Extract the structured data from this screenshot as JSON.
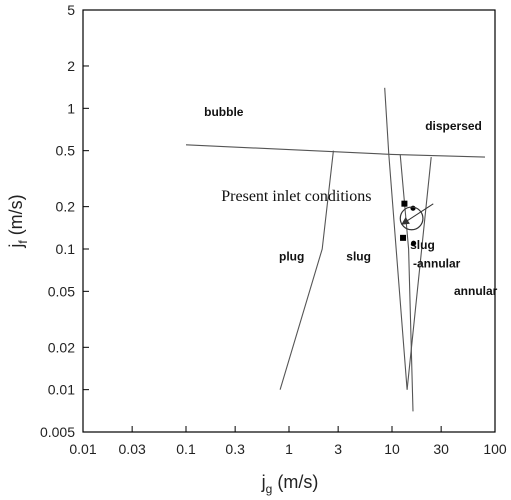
{
  "chart_data": {
    "type": "scatter",
    "x_scale": "log",
    "y_scale": "log",
    "xlim": [
      0.01,
      100
    ],
    "ylim": [
      0.005,
      5
    ],
    "xlabel": {
      "main": "j",
      "sub": "g",
      "units": " (m/s)"
    },
    "ylabel": {
      "main": "j",
      "sub": "f",
      "units": " (m/s)"
    },
    "x_ticks": [
      {
        "value": 0.01,
        "label": "0.01"
      },
      {
        "value": 0.03,
        "label": "0.03"
      },
      {
        "value": 0.1,
        "label": "0.1"
      },
      {
        "value": 0.3,
        "label": "0.3"
      },
      {
        "value": 1,
        "label": "1"
      },
      {
        "value": 3,
        "label": "3"
      },
      {
        "value": 10,
        "label": "10"
      },
      {
        "value": 30,
        "label": "30"
      },
      {
        "value": 100,
        "label": "100"
      }
    ],
    "y_ticks": [
      {
        "value": 5,
        "label": "5"
      },
      {
        "value": 2,
        "label": "2"
      },
      {
        "value": 1,
        "label": "1"
      },
      {
        "value": 0.5,
        "label": "0.5"
      },
      {
        "value": 0.2,
        "label": "0.2"
      },
      {
        "value": 0.1,
        "label": "0.1"
      },
      {
        "value": 0.05,
        "label": "0.05"
      },
      {
        "value": 0.02,
        "label": "0.02"
      },
      {
        "value": 0.01,
        "label": "0.01"
      },
      {
        "value": 0.005,
        "label": "0.005"
      }
    ],
    "regions": [
      {
        "label": "bubble",
        "x": 0.15,
        "y": 0.88
      },
      {
        "label": "dispersed",
        "x": 21,
        "y": 0.7
      },
      {
        "label": "plug",
        "x": 0.8,
        "y": 0.083
      },
      {
        "label": "slug",
        "x": 3.6,
        "y": 0.083
      },
      {
        "label": "slug",
        "x": 15,
        "y": 0.1
      },
      {
        "label": "-annular",
        "x": 16,
        "y": 0.074
      },
      {
        "label": "annular",
        "x": 40,
        "y": 0.047
      }
    ],
    "boundaries": [
      {
        "points": [
          [
            0.1,
            0.55
          ],
          [
            10,
            0.47
          ],
          [
            80,
            0.45
          ]
        ]
      },
      {
        "points": [
          [
            0.82,
            0.01
          ],
          [
            2.1,
            0.1
          ],
          [
            2.7,
            0.5
          ]
        ]
      },
      {
        "points": [
          [
            8.5,
            1.4
          ],
          [
            9.3,
            0.47
          ],
          [
            14,
            0.01
          ]
        ]
      },
      {
        "points": [
          [
            12,
            0.47
          ],
          [
            14.5,
            0.1
          ],
          [
            16,
            0.007
          ]
        ]
      },
      {
        "points": [
          [
            14,
            0.01
          ],
          [
            24,
            0.45
          ]
        ]
      }
    ],
    "series": [
      {
        "marker": "square",
        "points": [
          [
            13.2,
            0.21
          ],
          [
            12.8,
            0.12
          ]
        ]
      },
      {
        "marker": "circle",
        "points": [
          [
            16,
            0.195
          ],
          [
            16.2,
            0.11
          ]
        ]
      }
    ],
    "circle_annotation": {
      "center": [
        15.5,
        0.165
      ],
      "radius_decades": 0.11
    },
    "annotation": {
      "text": "Present inlet conditions",
      "x": 0.22,
      "y": 0.22,
      "arrow_to": [
        12.5,
        0.15
      ]
    }
  }
}
